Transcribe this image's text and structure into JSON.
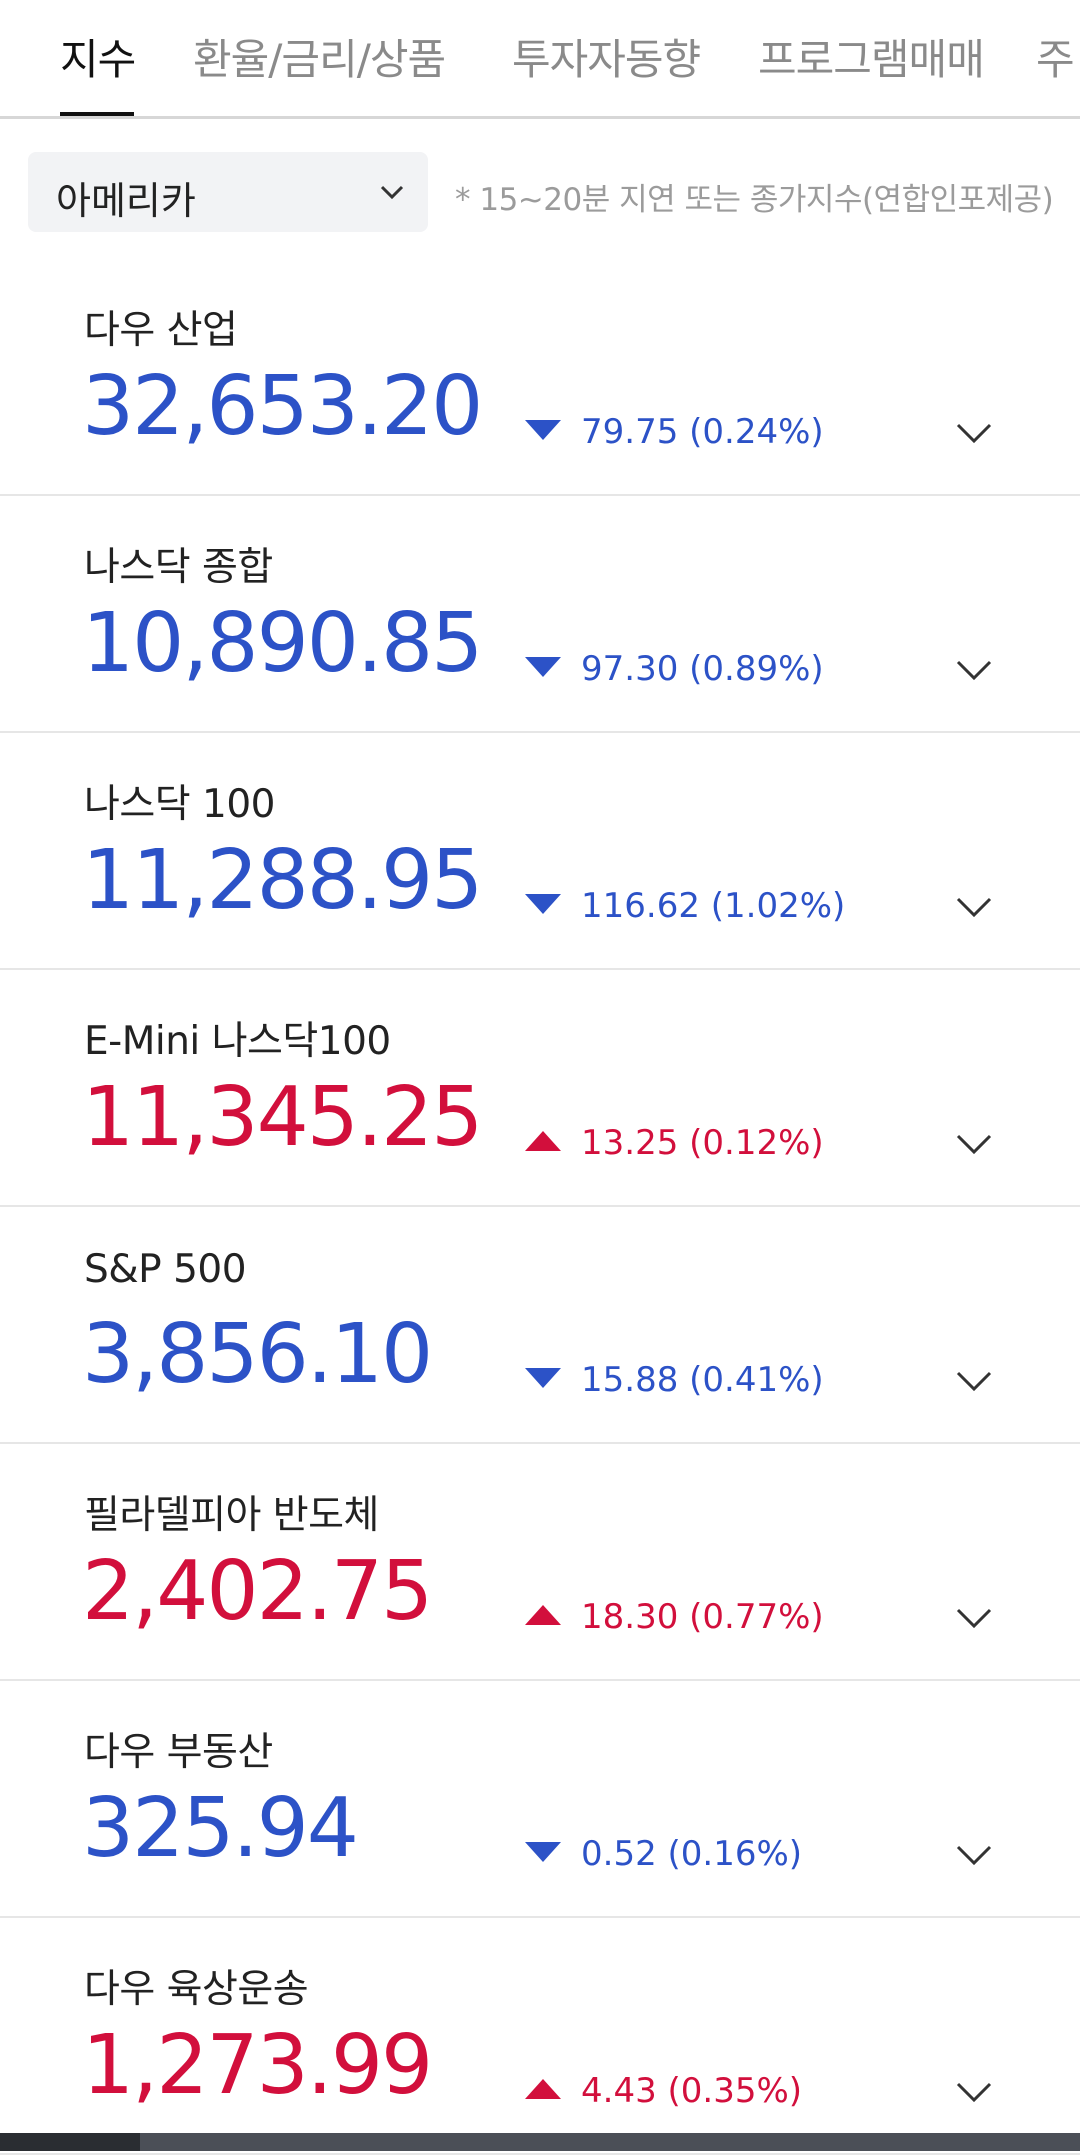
{
  "tabs": [
    {
      "label": "지수",
      "active": true
    },
    {
      "label": "환율/금리/상품",
      "active": false
    },
    {
      "label": "투자자동향",
      "active": false
    },
    {
      "label": "프로그램매매",
      "active": false
    },
    {
      "label": "주",
      "active": false
    }
  ],
  "region_select": {
    "value": "아메리카",
    "icon": "chevron-down-icon"
  },
  "note": "* 15~20분 지연 또는 종가지수(연합인포제공)",
  "colors": {
    "up": "#d20f3c",
    "down": "#2c52c7"
  },
  "indices": [
    {
      "name": "다우 산업",
      "value": "32,653.20",
      "direction": "down",
      "change": "79.75 (0.24%)"
    },
    {
      "name": "나스닥 종합",
      "value": "10,890.85",
      "direction": "down",
      "change": "97.30 (0.89%)"
    },
    {
      "name": "나스닥 100",
      "value": "11,288.95",
      "direction": "down",
      "change": "116.62 (1.02%)"
    },
    {
      "name": "E-Mini 나스닥100",
      "value": "11,345.25",
      "direction": "up",
      "change": "13.25 (0.12%)"
    },
    {
      "name": "S&P 500",
      "value": "3,856.10",
      "direction": "down",
      "change": "15.88 (0.41%)"
    },
    {
      "name": "필라델피아 반도체",
      "value": "2,402.75",
      "direction": "up",
      "change": "18.30 (0.77%)"
    },
    {
      "name": "다우 부동산",
      "value": "325.94",
      "direction": "down",
      "change": "0.52 (0.16%)"
    },
    {
      "name": "다우 육상운송",
      "value": "1,273.99",
      "direction": "up",
      "change": "4.43 (0.35%)"
    }
  ]
}
